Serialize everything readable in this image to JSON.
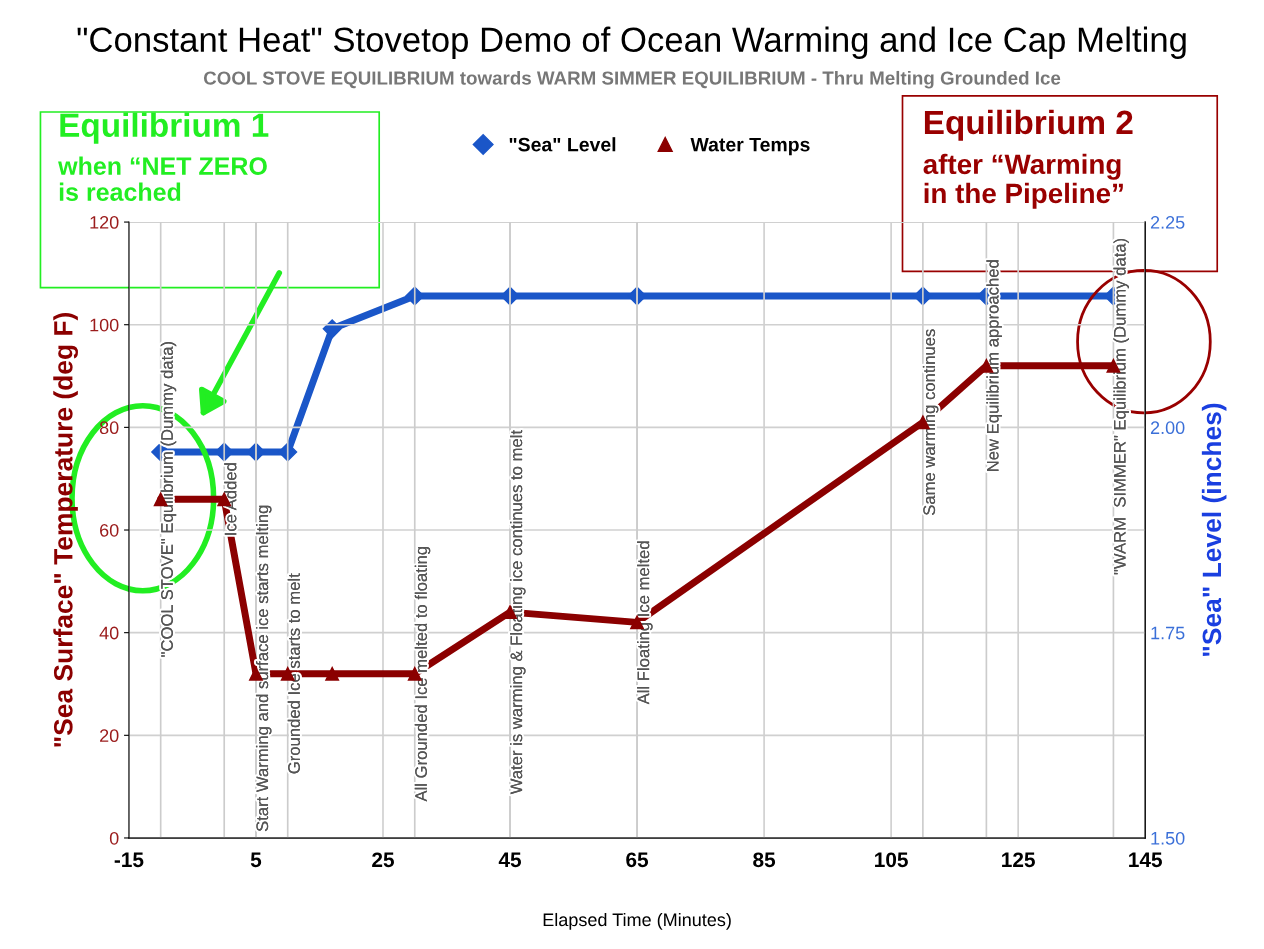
{
  "chart_data": {
    "type": "line",
    "title": "\"Constant Heat\" Stovetop Demo of Ocean Warming and Ice Cap Melting",
    "subtitle": "COOL STOVE EQUILIBRIUM towards WARM SIMMER EQUILIBRIUM - Thru Melting Grounded Ice",
    "xlabel": "Elapsed Time (Minutes)",
    "ylabel": "\"Sea Surface\" Temperature (deg F)",
    "y2label": "\"Sea\" Level (inches)",
    "x": [
      -10,
      0,
      5,
      10,
      17,
      30,
      45,
      65,
      110,
      120,
      140
    ],
    "series": [
      {
        "name": "\"Sea\" Level",
        "color": "#1a56c8",
        "axis": "y2",
        "marker": "diamond",
        "values": [
          1.97,
          1.97,
          1.97,
          1.97,
          2.12,
          2.16,
          2.16,
          2.16,
          2.16,
          2.16,
          2.16
        ]
      },
      {
        "name": "Water Temps",
        "color": "#8b0000",
        "marker": "triangle",
        "values": [
          66,
          66,
          32,
          32,
          32,
          32,
          44,
          42,
          81,
          92,
          92
        ]
      }
    ],
    "xlim": [
      -15,
      145
    ],
    "xticks": [
      -15,
      5,
      25,
      45,
      65,
      85,
      105,
      125,
      145
    ],
    "ylim": [
      0,
      120
    ],
    "yticks": [
      0,
      20,
      40,
      60,
      80,
      100,
      120
    ],
    "y2lim": [
      1.5,
      2.25
    ],
    "y2ticks": [
      {
        "value": 1.5,
        "label": "1.50"
      },
      {
        "value": 1.75,
        "label": "1.75"
      },
      {
        "value": 2.0,
        "label": "2.00"
      },
      {
        "value": 2.25,
        "label": "2.25"
      }
    ],
    "grid": true,
    "legend": "top",
    "line_style": "solid",
    "annotations": [
      {
        "text": "\"COOL STOVE\" Equilibrium (Dummy data)",
        "x": -10,
        "y": 66
      },
      {
        "text": "Ice Added",
        "x": 0,
        "y": 66
      },
      {
        "text": "Start Warming and surface ice starts melting",
        "x": 5,
        "y": 32
      },
      {
        "text": "Grounded Ice starts to melt",
        "x": 10,
        "y": 32
      },
      {
        "text": "All Grounded Ice melted to floating",
        "x": 30,
        "y": 32
      },
      {
        "text": "Water is warming & Floating ice continues to melt",
        "x": 45,
        "y": 44
      },
      {
        "text": "All Floating Ice melted",
        "x": 65,
        "y": 42
      },
      {
        "text": "Same warming continues",
        "x": 110,
        "y": 81
      },
      {
        "text": "New Equilibrium approached",
        "x": 120,
        "y": 92
      },
      {
        "text": "\"WARM  SIMMER\" Equilibrium (Dummy data)",
        "x": 140,
        "y": 92
      },
      "Equilibrium 1\nwhen “NET ZERO\nis reached",
      "Equilibrium 2\nafter “Warming\nin the Pipeline”"
    ]
  }
}
